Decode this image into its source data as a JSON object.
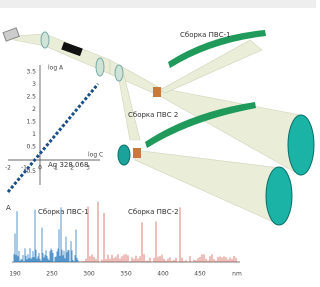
{
  "top_labels": {
    "assembly1": "Сборка ПВС-1",
    "assembly2": "Сборка ПВС 2"
  },
  "calibration": {
    "y_label": "log A",
    "x_label": "log C",
    "line_label": "Ag 328.068",
    "y_ticks": [
      "3.5",
      "3",
      "2.5",
      "2",
      "1.5",
      "1",
      "0.5",
      "-0.5"
    ],
    "x_ticks": [
      "-2",
      "-1",
      "0",
      "1",
      "2",
      "3"
    ]
  },
  "spectrum": {
    "y_label": "A",
    "series_labels": [
      "Сборка ПВС-1",
      "Сборка ПВС-2"
    ],
    "x_ticks": [
      "190",
      "250",
      "300",
      "350",
      "400",
      "450",
      "nm"
    ]
  }
}
